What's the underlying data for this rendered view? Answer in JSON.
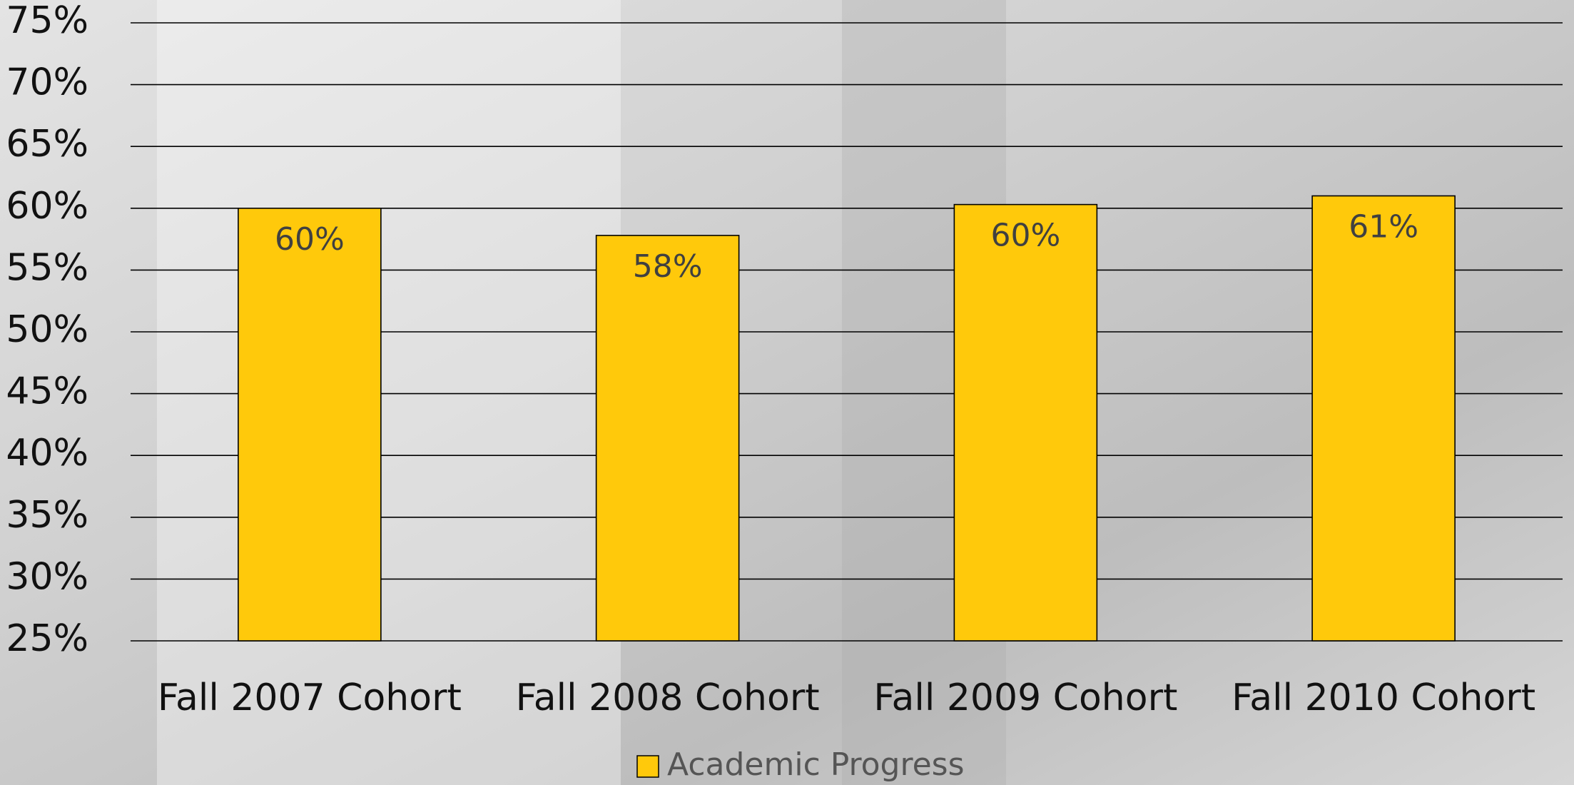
{
  "chart_data": {
    "type": "bar",
    "categories": [
      "Fall 2007 Cohort",
      "Fall 2008 Cohort",
      "Fall 2009 Cohort",
      "Fall 2010 Cohort"
    ],
    "series": [
      {
        "name": "Academic Progress",
        "color": "#ffc90b",
        "values": [
          60,
          57.8,
          60.3,
          61
        ],
        "value_labels": [
          "60%",
          "58%",
          "60%",
          "61%"
        ]
      }
    ],
    "ylim": [
      25,
      75
    ],
    "yticks": [
      {
        "value": 25,
        "label": "25%"
      },
      {
        "value": 30,
        "label": "30%"
      },
      {
        "value": 35,
        "label": "35%"
      },
      {
        "value": 40,
        "label": "40%"
      },
      {
        "value": 45,
        "label": "45%"
      },
      {
        "value": 50,
        "label": "50%"
      },
      {
        "value": 55,
        "label": "55%"
      },
      {
        "value": 60,
        "label": "60%"
      },
      {
        "value": 65,
        "label": "65%"
      },
      {
        "value": 70,
        "label": "70%"
      },
      {
        "value": 75,
        "label": "75%"
      }
    ],
    "grid": true,
    "legend": "bottom"
  }
}
